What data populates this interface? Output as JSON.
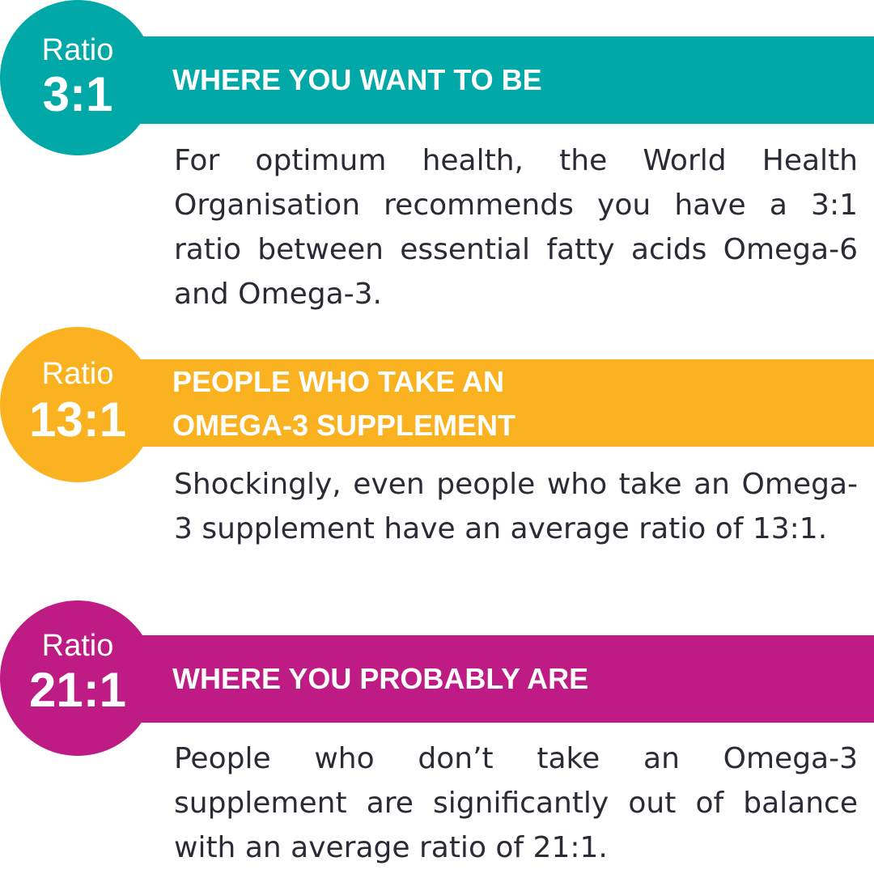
{
  "colors": {
    "teal": "#00a9a8",
    "amber": "#fbb220",
    "magenta": "#be1b84",
    "text": "#2b2b36",
    "heading_text": "#ffffff"
  },
  "sections": [
    {
      "badge_word": "Ratio",
      "badge_value": "3:1",
      "heading": "WHERE YOU WANT TO BE",
      "body": "For optimum health, the World Health Organisation recommends you have a 3:1 ratio between essential fatty acids Omega-6 and Omega-3."
    },
    {
      "badge_word": "Ratio",
      "badge_value": "13:1",
      "heading_line1": "PEOPLE WHO TAKE AN",
      "heading_line2": "OMEGA-3 SUPPLEMENT",
      "body": "Shockingly, even people who take an Omega-3 supplement have an average ratio of 13:1."
    },
    {
      "badge_word": "Ratio",
      "badge_value": "21:1",
      "heading": "WHERE YOU PROBABLY ARE",
      "body": "People who don’t take an Omega-3 supplement are significantly out of balance with an average ratio of 21:1."
    }
  ]
}
